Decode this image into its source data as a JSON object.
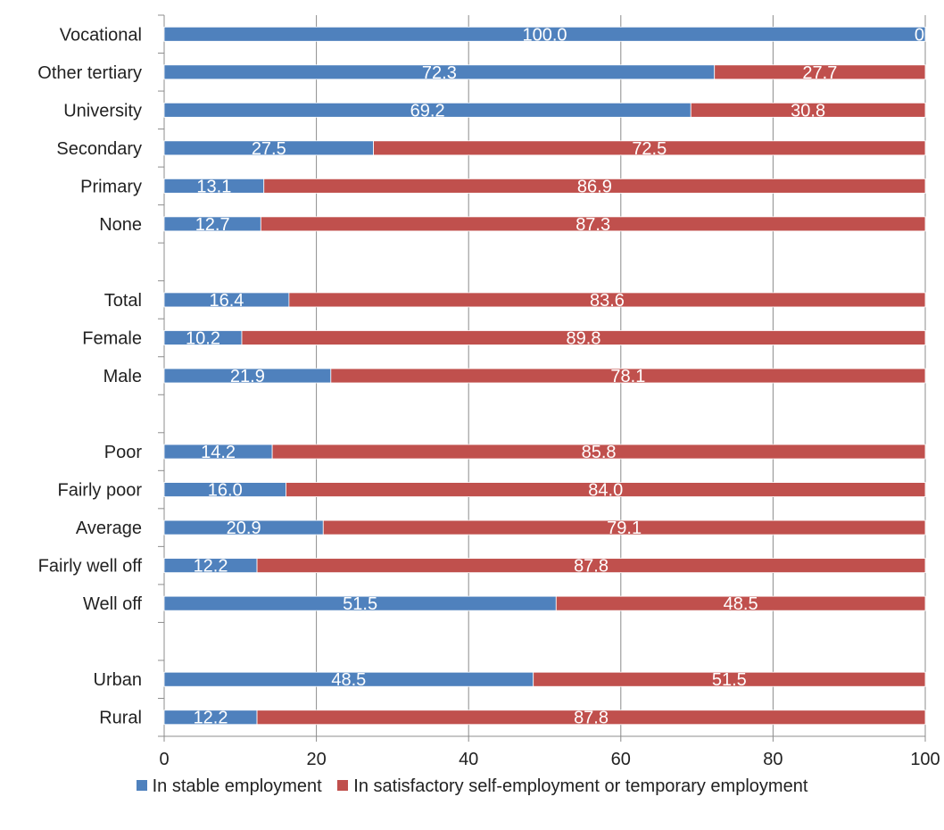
{
  "chart_data": {
    "type": "bar",
    "orientation": "horizontal",
    "stacked": true,
    "categories": [
      "Vocational",
      "Other tertiary",
      "University",
      "Secondary",
      "Primary",
      "None",
      "",
      "Total",
      "Female",
      "Male",
      "",
      "Poor",
      "Fairly poor",
      "Average",
      "Fairly well off",
      "Well off",
      "",
      "Urban",
      "Rural"
    ],
    "series": [
      {
        "name": "In stable employment",
        "color": "#4f81bd",
        "values": [
          100.0,
          72.3,
          69.2,
          27.5,
          13.1,
          12.7,
          null,
          16.4,
          10.2,
          21.9,
          null,
          14.2,
          16.0,
          20.9,
          12.2,
          51.5,
          null,
          48.5,
          12.2
        ],
        "labels": [
          "100.0",
          "72.3",
          "69.2",
          "27.5",
          "13.1",
          "12.7",
          "",
          "16.4",
          "10.2",
          "21.9",
          "",
          "14.2",
          "16.0",
          "20.9",
          "12.2",
          "51.5",
          "",
          "48.5",
          "12.2"
        ]
      },
      {
        "name": "In satisfactory self-employment or temporary employment",
        "color": "#c0504d",
        "values": [
          0,
          27.7,
          30.8,
          72.5,
          86.9,
          87.3,
          null,
          83.6,
          89.8,
          78.1,
          null,
          85.8,
          84.0,
          79.1,
          87.8,
          48.5,
          null,
          51.5,
          87.8
        ],
        "labels": [
          "0",
          "27.7",
          "30.8",
          "72.5",
          "86.9",
          "87.3",
          "",
          "83.6",
          "89.8",
          "78.1",
          "",
          "85.8",
          "84.0",
          "79.1",
          "87.8",
          "48.5",
          "",
          "51.5",
          "87.8"
        ]
      }
    ],
    "xlim": [
      0,
      100
    ],
    "xticks": [
      "0",
      "20",
      "40",
      "60",
      "80",
      "100"
    ],
    "grid": true,
    "legend_position": "bottom",
    "title": "",
    "xlabel": "",
    "ylabel": ""
  }
}
